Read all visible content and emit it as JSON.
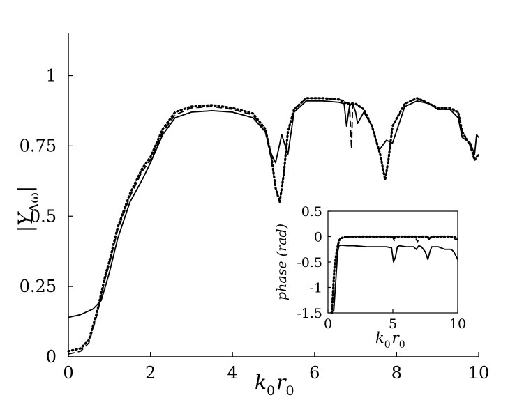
{
  "chart_data": [
    {
      "type": "line",
      "xlabel": "k0r0",
      "ylabel": "|YΔω|",
      "xlim": [
        0,
        10
      ],
      "ylim": [
        0,
        1.15
      ],
      "x_ticks": [
        "0",
        "2",
        "4",
        "6",
        "8",
        "10"
      ],
      "y_ticks": [
        "0",
        "0.25",
        "0.5",
        "0.75",
        "1"
      ],
      "grid": false,
      "series": [
        {
          "style": "solid",
          "x": [
            0,
            0.3,
            0.6,
            0.8,
            1.0,
            1.2,
            1.5,
            1.8,
            2.0,
            2.3,
            2.6,
            3.0,
            3.5,
            4.0,
            4.5,
            4.8,
            4.95,
            5.05,
            5.2,
            5.35,
            5.5,
            5.8,
            6.2,
            6.6,
            6.72,
            6.78,
            6.85,
            6.92,
            7.0,
            7.05,
            7.2,
            7.4,
            7.55,
            7.6,
            7.75,
            7.9,
            8.2,
            8.5,
            8.8,
            9.0,
            9.3,
            9.5,
            9.6,
            9.8,
            9.9,
            9.95,
            10.0
          ],
          "y": [
            0.14,
            0.15,
            0.17,
            0.2,
            0.3,
            0.42,
            0.55,
            0.63,
            0.69,
            0.79,
            0.85,
            0.87,
            0.875,
            0.87,
            0.85,
            0.8,
            0.72,
            0.69,
            0.79,
            0.72,
            0.87,
            0.91,
            0.91,
            0.905,
            0.9,
            0.82,
            0.89,
            0.905,
            0.87,
            0.83,
            0.87,
            0.82,
            0.74,
            0.74,
            0.77,
            0.76,
            0.89,
            0.91,
            0.9,
            0.88,
            0.88,
            0.85,
            0.78,
            0.76,
            0.72,
            0.79,
            0.78
          ]
        },
        {
          "style": "dashed",
          "x": [
            0,
            0.3,
            0.5,
            0.7,
            0.9,
            1.0,
            1.2,
            1.5,
            1.8,
            2.0,
            2.3,
            2.6,
            3.0,
            3.5,
            4.0,
            4.5,
            4.8,
            4.95,
            5.05,
            5.15,
            5.25,
            5.35,
            5.5,
            5.8,
            6.2,
            6.6,
            6.75,
            6.85,
            6.9,
            6.93,
            7.0,
            7.2,
            7.4,
            7.6,
            7.72,
            7.8,
            7.9,
            8.2,
            8.5,
            8.8,
            9.0,
            9.3,
            9.5,
            9.6,
            9.8,
            9.9,
            10.0
          ],
          "y": [
            0.01,
            0.02,
            0.05,
            0.15,
            0.28,
            0.33,
            0.45,
            0.57,
            0.66,
            0.7,
            0.8,
            0.86,
            0.885,
            0.89,
            0.88,
            0.86,
            0.8,
            0.7,
            0.6,
            0.55,
            0.65,
            0.8,
            0.88,
            0.92,
            0.92,
            0.915,
            0.91,
            0.9,
            0.74,
            0.9,
            0.9,
            0.88,
            0.82,
            0.72,
            0.63,
            0.7,
            0.82,
            0.9,
            0.92,
            0.9,
            0.88,
            0.88,
            0.87,
            0.8,
            0.75,
            0.7,
            0.72
          ]
        },
        {
          "style": "dotted",
          "x": [
            0,
            0.3,
            0.5,
            0.7,
            0.9,
            1.0,
            1.2,
            1.5,
            1.8,
            2.0,
            2.3,
            2.6,
            3.0,
            3.5,
            4.0,
            4.5,
            4.8,
            4.95,
            5.05,
            5.15,
            5.25,
            5.35,
            5.5,
            5.8,
            6.2,
            6.6,
            6.8,
            7.0,
            7.2,
            7.4,
            7.6,
            7.72,
            7.8,
            7.9,
            8.2,
            8.5,
            8.8,
            9.0,
            9.3,
            9.5,
            9.6,
            9.8,
            9.9,
            10.0
          ],
          "y": [
            0.02,
            0.03,
            0.06,
            0.16,
            0.29,
            0.34,
            0.46,
            0.58,
            0.67,
            0.71,
            0.81,
            0.87,
            0.89,
            0.895,
            0.885,
            0.865,
            0.81,
            0.71,
            0.6,
            0.55,
            0.65,
            0.8,
            0.88,
            0.92,
            0.92,
            0.915,
            0.9,
            0.9,
            0.88,
            0.82,
            0.72,
            0.63,
            0.7,
            0.82,
            0.9,
            0.92,
            0.9,
            0.885,
            0.885,
            0.87,
            0.8,
            0.75,
            0.7,
            0.72
          ]
        }
      ]
    },
    {
      "type": "line",
      "xlabel": "k0r0",
      "ylabel": "phase (rad)",
      "xlim": [
        0,
        10
      ],
      "ylim": [
        -1.5,
        0.5
      ],
      "x_ticks": [
        "0",
        "5",
        "10"
      ],
      "y_ticks": [
        "0.5",
        "0",
        "-0.5",
        "-1",
        "-1.5"
      ],
      "grid": false,
      "series": [
        {
          "style": "solid",
          "x": [
            0.2,
            0.45,
            0.75,
            0.85,
            1.0,
            1.5,
            2.0,
            3.0,
            4.0,
            4.5,
            4.9,
            5.05,
            5.2,
            5.35,
            5.5,
            6.0,
            6.6,
            6.8,
            7.0,
            7.2,
            7.5,
            7.7,
            7.85,
            8.0,
            8.5,
            9.0,
            9.5,
            9.7,
            9.9,
            10.0
          ],
          "y": [
            -1.5,
            -1.45,
            -0.3,
            -0.18,
            -0.17,
            -0.18,
            -0.18,
            -0.2,
            -0.2,
            -0.2,
            -0.22,
            -0.5,
            -0.4,
            -0.2,
            -0.18,
            -0.2,
            -0.2,
            -0.25,
            -0.18,
            -0.2,
            -0.3,
            -0.45,
            -0.3,
            -0.2,
            -0.2,
            -0.25,
            -0.25,
            -0.3,
            -0.4,
            -0.45
          ]
        },
        {
          "style": "dashed",
          "x": [
            0.7,
            0.9,
            1.1,
            1.4,
            2.0,
            3.0,
            4.0,
            5.0,
            5.1,
            5.2,
            6.0,
            6.7,
            6.9,
            7.1,
            7.6,
            7.8,
            8.0,
            9.0,
            9.5,
            9.8,
            10.0
          ],
          "y": [
            -0.2,
            -0.05,
            -0.02,
            -0.01,
            0,
            0,
            0,
            0,
            -0.08,
            0,
            0,
            0,
            -0.1,
            0,
            0,
            -0.06,
            0,
            0,
            0,
            -0.05,
            -0.05
          ]
        },
        {
          "style": "dotted",
          "x": [
            0.3,
            0.5,
            0.7,
            0.85,
            1.0,
            1.3,
            2.0,
            3.0,
            4.0,
            5.0,
            5.1,
            5.2,
            6.0,
            7.0,
            7.7,
            7.8,
            8.0,
            9.0,
            9.5,
            10.0
          ],
          "y": [
            -1.5,
            -0.6,
            -0.25,
            -0.08,
            -0.03,
            -0.01,
            0,
            0,
            0,
            0,
            -0.05,
            0,
            0,
            0,
            0,
            -0.05,
            0,
            0,
            0,
            -0.02
          ]
        }
      ]
    }
  ]
}
